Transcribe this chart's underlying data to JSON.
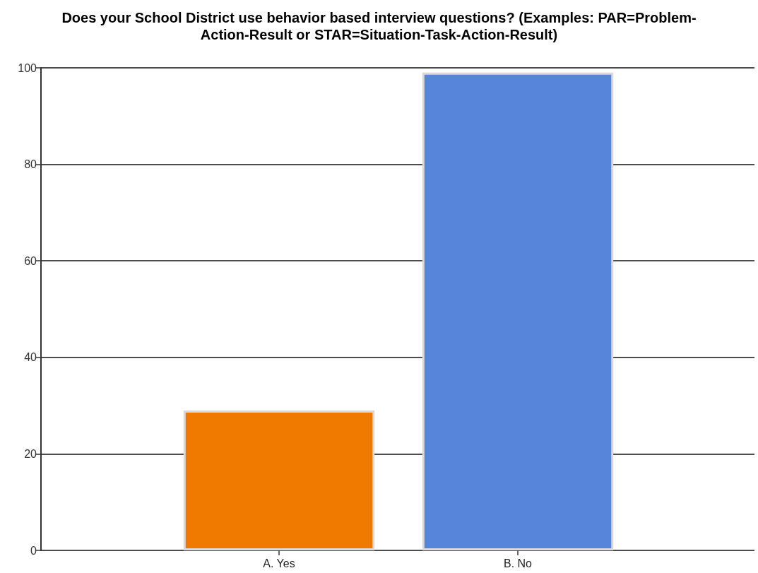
{
  "chart_data": {
    "type": "bar",
    "title": "Does your School District use behavior based interview questions? (Examples: PAR=Problem-Action-Result or STAR=Situation-Task-Action-Result)",
    "categories": [
      "A. Yes",
      "B. No"
    ],
    "values": [
      29,
      99
    ],
    "colors": [
      "#f07a00",
      "#5685da"
    ],
    "ylim": [
      0,
      100
    ],
    "yticks": [
      0,
      20,
      40,
      60,
      80,
      100
    ],
    "grid": "y"
  }
}
